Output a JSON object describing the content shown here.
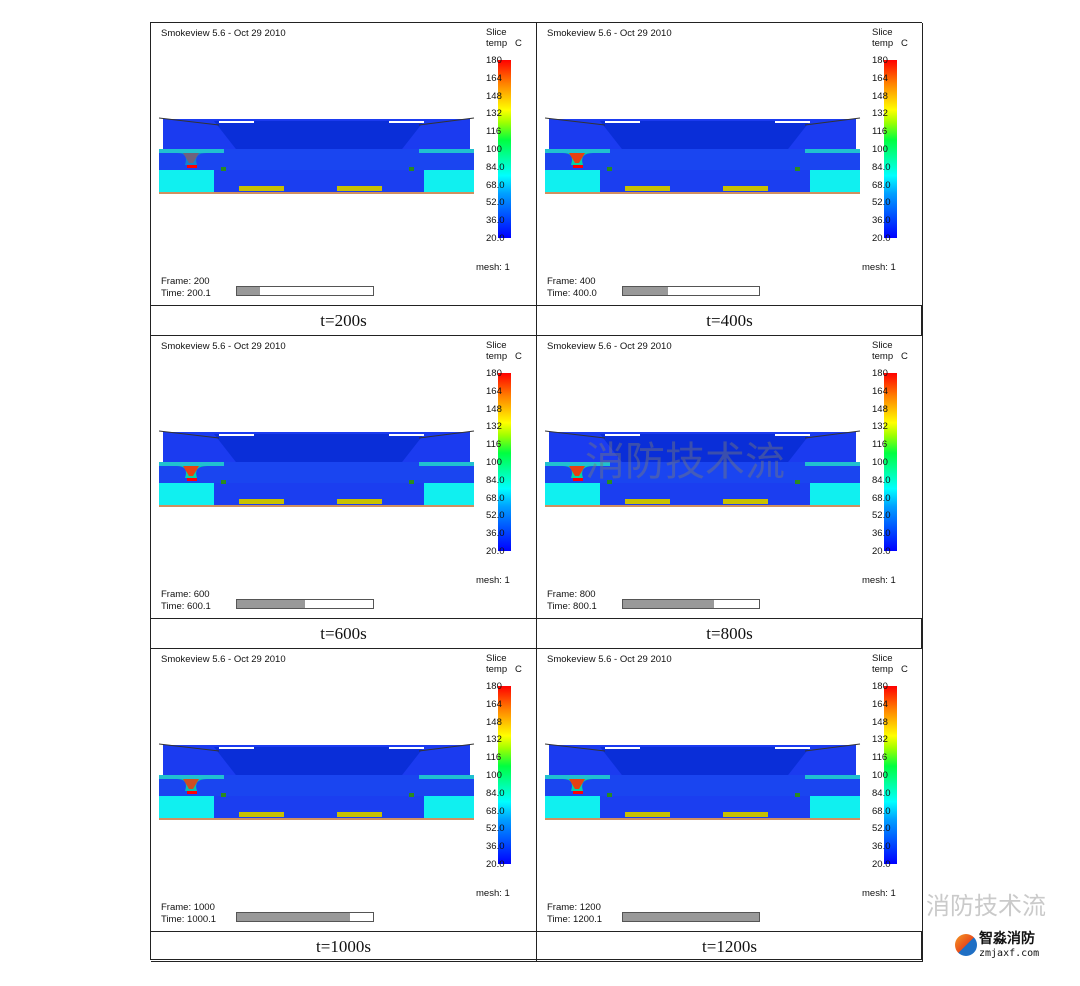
{
  "app_title": "Smokeview 5.6 - Oct 29 2010",
  "legend": {
    "line1": "Slice",
    "line2": "temp",
    "unit": "C",
    "ticks": [
      "180",
      "164",
      "148",
      "132",
      "116",
      "100",
      "84.0",
      "68.0",
      "52.0",
      "36.0",
      "20.0"
    ],
    "mesh": "mesh: 1"
  },
  "panels": [
    {
      "frame": "Frame: 200",
      "time": "Time: 200.1",
      "progress": 0.167,
      "caption": "t=200s",
      "plume": 0.4
    },
    {
      "frame": "Frame: 400",
      "time": "Time: 400.0",
      "progress": 0.333,
      "caption": "t=400s",
      "plume": 0.9
    },
    {
      "frame": "Frame: 600",
      "time": "Time: 600.1",
      "progress": 0.5,
      "caption": "t=600s",
      "plume": 0.9
    },
    {
      "frame": "Frame: 800",
      "time": "Time: 800.1",
      "progress": 0.667,
      "caption": "t=800s",
      "plume": 0.9
    },
    {
      "frame": "Frame: 1000",
      "time": "Time: 1000.1",
      "progress": 0.833,
      "caption": "t=1000s",
      "plume": 0.8
    },
    {
      "frame": "Frame: 1200",
      "time": "Time: 1200.1",
      "progress": 1.0,
      "caption": "t=1200s",
      "plume": 0.9
    }
  ],
  "watermark": "消防技术流",
  "footer_logo": {
    "text": "消防技术流",
    "brand": "智淼消防",
    "url": "zmjaxf.com"
  }
}
